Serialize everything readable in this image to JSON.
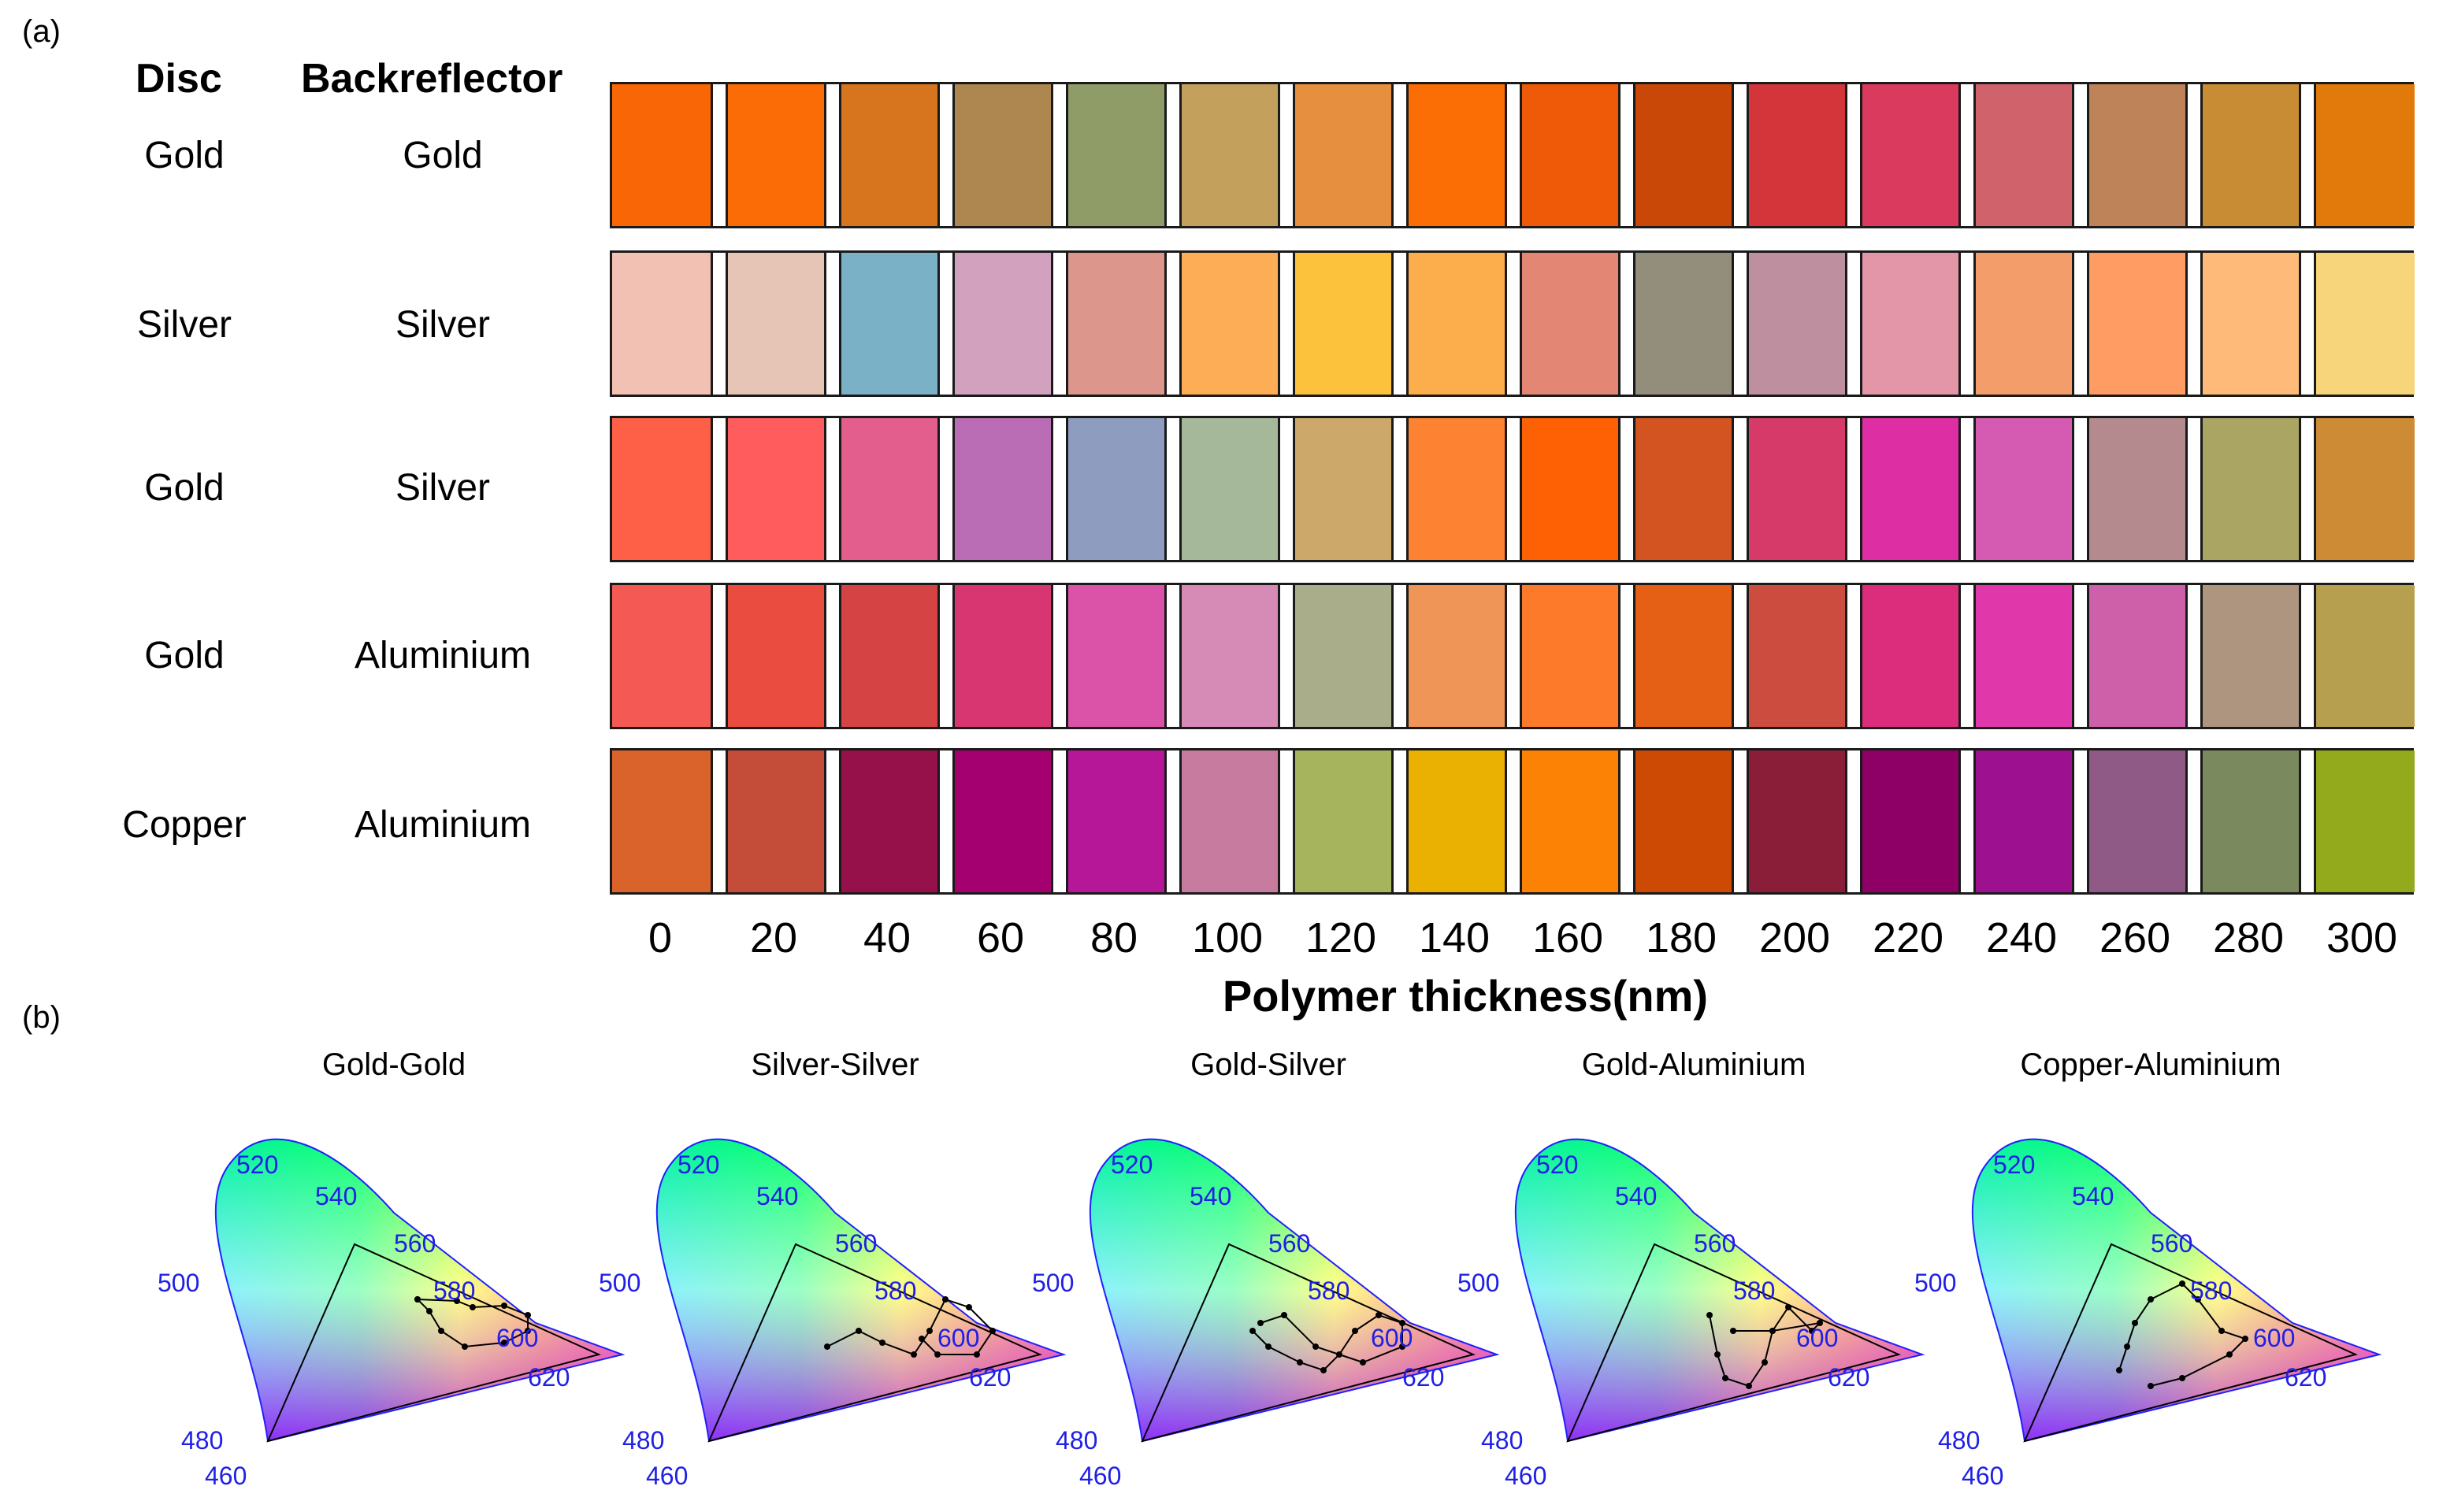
{
  "panels": {
    "a": "(a)",
    "b": "(b)"
  },
  "headers": {
    "disc": "Disc",
    "backreflector": "Backreflector"
  },
  "rows": [
    {
      "disc": "Gold",
      "backreflector": "Gold",
      "colors": [
        "#F86605",
        "#FB6C06",
        "#D7751F",
        "#AD8650",
        "#8F9C68",
        "#C3A15D",
        "#E68F3E",
        "#FB6E05",
        "#EF5A08",
        "#C94707",
        "#D4353A",
        "#D93A5D",
        "#D0626B",
        "#BE8358",
        "#C88C35",
        "#E27A0B"
      ]
    },
    {
      "disc": "Silver",
      "backreflector": "Silver",
      "colors": [
        "#F3C1B4",
        "#E6C5B7",
        "#7AB1C6",
        "#D1A1BD",
        "#DD968C",
        "#FCAD56",
        "#FDC23C",
        "#FCAE4C",
        "#E38674",
        "#938D7C",
        "#BE909F",
        "#E296A8",
        "#F29D6A",
        "#FE9C63",
        "#FDBA78",
        "#F7D57B"
      ]
    },
    {
      "disc": "Gold",
      "backreflector": "Silver",
      "colors": [
        "#FE6047",
        "#FE5C5D",
        "#E35D8D",
        "#BA6DB4",
        "#8D9CBF",
        "#A6B89A",
        "#CCA86A",
        "#FD8332",
        "#FE6104",
        "#D35421",
        "#D53A68",
        "#DE2EA3",
        "#D55AB1",
        "#B48A8E",
        "#AAA563",
        "#CE8B35"
      ]
    },
    {
      "disc": "Gold",
      "backreflector": "Aluminium",
      "colors": [
        "#F55953",
        "#EA4C3F",
        "#D64345",
        "#D83670",
        "#DB53A9",
        "#D58BB6",
        "#AAAD8A",
        "#EE9557",
        "#FC7A2A",
        "#E55F15",
        "#CD4C40",
        "#DC2C7C",
        "#E038AB",
        "#CE5FA9",
        "#AD9580",
        "#B79F50"
      ]
    },
    {
      "disc": "Copper",
      "backreflector": "Aluminium",
      "colors": [
        "#D9632A",
        "#C44D3A",
        "#961049",
        "#A5006F",
        "#B61698",
        "#C67B9F",
        "#A6B45E",
        "#EAB002",
        "#FC8206",
        "#CD4A04",
        "#8A1D37",
        "#8F0066",
        "#9D1190",
        "#905A87",
        "#7A8A5E",
        "#93AA1C"
      ]
    }
  ],
  "x_axis": {
    "ticks": [
      "0",
      "20",
      "40",
      "60",
      "80",
      "100",
      "120",
      "140",
      "160",
      "180",
      "200",
      "220",
      "240",
      "260",
      "280",
      "300"
    ],
    "label": "Polymer thickness(nm)"
  },
  "cie_diagrams": [
    {
      "title": "Gold-Gold"
    },
    {
      "title": "Silver-Silver"
    },
    {
      "title": "Gold-Silver"
    },
    {
      "title": "Gold-Aluminium"
    },
    {
      "title": "Copper-Aluminium"
    }
  ],
  "wavelength_labels": [
    "520",
    "540",
    "560",
    "580",
    "600",
    "620",
    "500",
    "480",
    "460"
  ]
}
